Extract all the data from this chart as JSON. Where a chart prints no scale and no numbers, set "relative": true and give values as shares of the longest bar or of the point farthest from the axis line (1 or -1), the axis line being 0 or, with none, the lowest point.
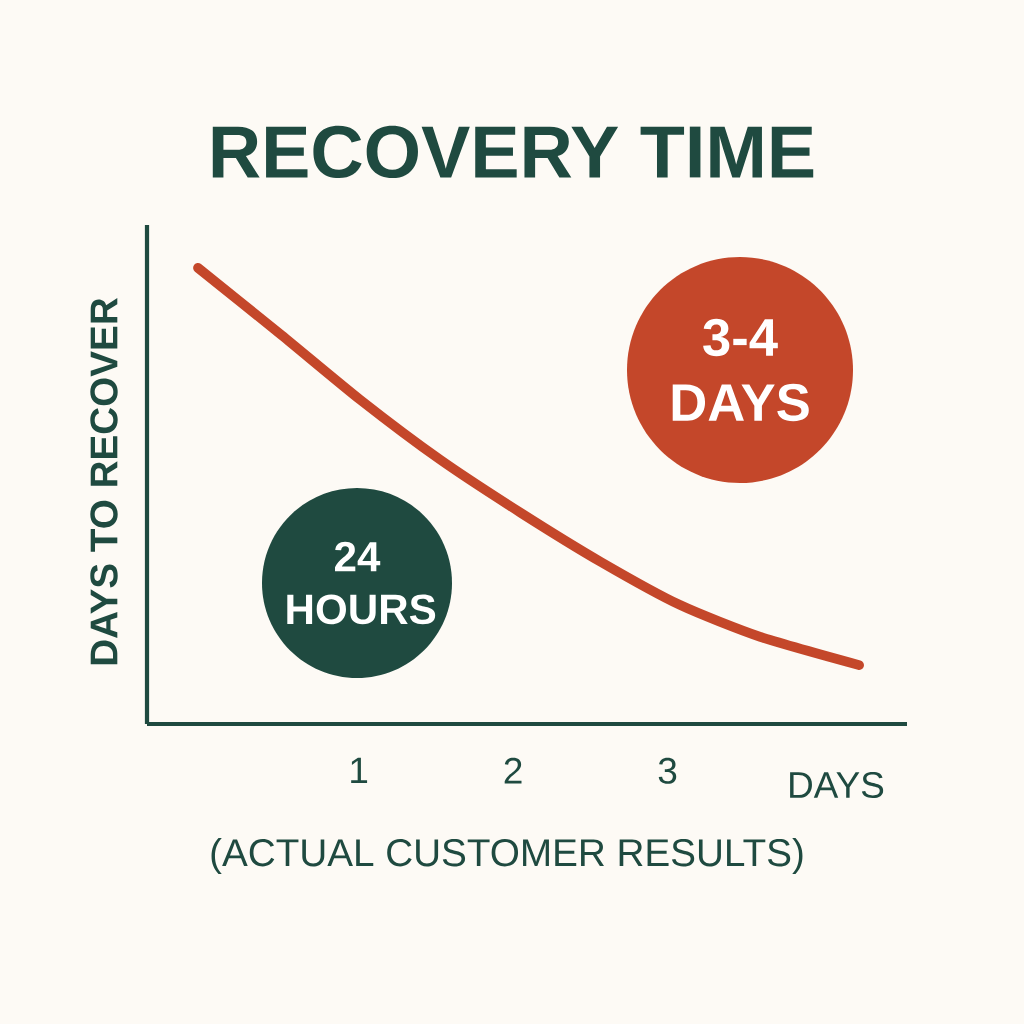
{
  "chart_data": {
    "type": "line",
    "title": "RECOVERY TIME",
    "xlabel": "DAYS",
    "ylabel": "DAYS TO RECOVER",
    "annotations": [
      "24 HOURS",
      "3-4 DAYS",
      "(ACTUAL CUSTOMER RESULTS)"
    ],
    "relative": true,
    "xlim": [
      -0.37,
      4.55
    ],
    "xticks": [
      1,
      2,
      3
    ],
    "series": [
      {
        "color": "#c4472a",
        "x": [
          -0.04,
          0.5,
          1.01,
          1.53,
          2.05,
          2.57,
          3.08,
          3.6,
          4.24
        ],
        "values": [
          1,
          0.853,
          0.711,
          0.579,
          0.463,
          0.355,
          0.261,
          0.191,
          0.129
        ]
      }
    ],
    "grid": false,
    "marker": "none",
    "line_style": "solid"
  }
}
